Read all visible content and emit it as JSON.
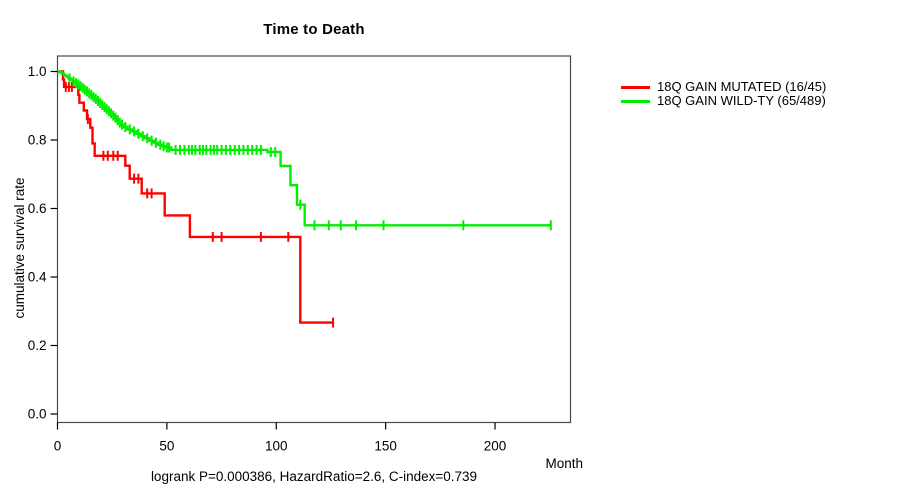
{
  "chart_data": {
    "type": "line",
    "subtype": "kaplan-meier-step",
    "title": "Time to Death",
    "xlabel": "Month",
    "ylabel": "cumulative survival rate",
    "footer": "logrank P=0.000386, HazardRatio=2.6, C-index=0.739",
    "xlim": [
      0,
      234.5
    ],
    "ylim": [
      0,
      1
    ],
    "x_ticks": [
      0,
      50,
      100,
      150,
      200
    ],
    "y_ticks": [
      0,
      0.2,
      0.4,
      0.6,
      0.8,
      1
    ],
    "grid": false,
    "legend_position": "right-outside",
    "series": [
      {
        "label": "18Q GAIN MUTATED (16/45)",
        "events": "16/45",
        "color": "#ff0000",
        "points": [
          [
            0,
            1
          ],
          [
            2.5,
            0.977
          ],
          [
            3,
            0.955
          ],
          [
            9.5,
            0.932
          ],
          [
            10,
            0.909
          ],
          [
            12,
            0.886
          ],
          [
            13.5,
            0.861
          ],
          [
            15,
            0.836
          ],
          [
            16,
            0.79
          ],
          [
            17,
            0.754
          ],
          [
            31,
            0.725
          ],
          [
            33,
            0.687
          ],
          [
            38.5,
            0.644
          ],
          [
            49,
            0.58
          ],
          [
            60.5,
            0.517
          ],
          [
            111,
            0.267
          ]
        ],
        "end_month": 126,
        "censors": [
          [
            3.8,
            0.955
          ],
          [
            5.2,
            0.955
          ],
          [
            6.6,
            0.955
          ],
          [
            13.9,
            0.861
          ],
          [
            21,
            0.754
          ],
          [
            23,
            0.754
          ],
          [
            25.5,
            0.754
          ],
          [
            27.5,
            0.754
          ],
          [
            35,
            0.687
          ],
          [
            37,
            0.687
          ],
          [
            41,
            0.644
          ],
          [
            43,
            0.644
          ],
          [
            71,
            0.517
          ],
          [
            75,
            0.517
          ],
          [
            93,
            0.517
          ],
          [
            105.5,
            0.517
          ],
          [
            126,
            0.267
          ]
        ]
      },
      {
        "label": "18Q GAIN WILD-TY (65/489)",
        "events": "65/489",
        "color": "#00ee00",
        "points": [
          [
            0,
            1
          ],
          [
            1,
            0.998
          ],
          [
            2,
            0.994
          ],
          [
            3,
            0.989
          ],
          [
            4,
            0.985
          ],
          [
            5,
            0.98
          ],
          [
            6,
            0.976
          ],
          [
            7,
            0.971
          ],
          [
            8,
            0.966
          ],
          [
            9,
            0.962
          ],
          [
            10,
            0.957
          ],
          [
            11,
            0.952
          ],
          [
            12,
            0.947
          ],
          [
            13,
            0.942
          ],
          [
            14,
            0.936
          ],
          [
            15,
            0.931
          ],
          [
            16,
            0.925
          ],
          [
            17,
            0.92
          ],
          [
            18,
            0.914
          ],
          [
            19,
            0.908
          ],
          [
            20,
            0.902
          ],
          [
            21,
            0.896
          ],
          [
            22,
            0.89
          ],
          [
            23,
            0.884
          ],
          [
            24,
            0.878
          ],
          [
            25,
            0.871
          ],
          [
            26,
            0.865
          ],
          [
            27,
            0.858
          ],
          [
            28,
            0.851
          ],
          [
            29,
            0.845
          ],
          [
            30,
            0.838
          ],
          [
            32,
            0.831
          ],
          [
            34,
            0.825
          ],
          [
            36,
            0.818
          ],
          [
            38,
            0.811
          ],
          [
            40,
            0.805
          ],
          [
            42,
            0.798
          ],
          [
            44,
            0.792
          ],
          [
            46,
            0.786
          ],
          [
            48,
            0.782
          ],
          [
            49,
            0.778
          ],
          [
            52,
            0.771
          ],
          [
            96,
            0.765
          ],
          [
            102,
            0.724
          ],
          [
            106.5,
            0.668
          ],
          [
            109.5,
            0.611
          ],
          [
            113,
            0.551
          ]
        ],
        "end_month": 225.5,
        "censors": [
          [
            5.5,
            0.98
          ],
          [
            7.3,
            0.971
          ],
          [
            8.5,
            0.966
          ],
          [
            9.5,
            0.962
          ],
          [
            10.5,
            0.957
          ],
          [
            11.5,
            0.952
          ],
          [
            12.5,
            0.947
          ],
          [
            13.5,
            0.942
          ],
          [
            14.5,
            0.936
          ],
          [
            15.5,
            0.931
          ],
          [
            16.5,
            0.925
          ],
          [
            17.5,
            0.92
          ],
          [
            18.5,
            0.914
          ],
          [
            19.5,
            0.908
          ],
          [
            20.5,
            0.902
          ],
          [
            21.5,
            0.896
          ],
          [
            22.5,
            0.89
          ],
          [
            23.5,
            0.884
          ],
          [
            24.5,
            0.878
          ],
          [
            25.5,
            0.871
          ],
          [
            26.5,
            0.865
          ],
          [
            27.5,
            0.858
          ],
          [
            28.5,
            0.851
          ],
          [
            29.5,
            0.845
          ],
          [
            31,
            0.838
          ],
          [
            33,
            0.831
          ],
          [
            35,
            0.825
          ],
          [
            37,
            0.818
          ],
          [
            39,
            0.811
          ],
          [
            41,
            0.805
          ],
          [
            43,
            0.798
          ],
          [
            45,
            0.792
          ],
          [
            47,
            0.786
          ],
          [
            48.5,
            0.782
          ],
          [
            50,
            0.778
          ],
          [
            51,
            0.778
          ],
          [
            54,
            0.771
          ],
          [
            56,
            0.771
          ],
          [
            58,
            0.771
          ],
          [
            60,
            0.771
          ],
          [
            61.5,
            0.771
          ],
          [
            63,
            0.771
          ],
          [
            65,
            0.771
          ],
          [
            66.5,
            0.771
          ],
          [
            68,
            0.771
          ],
          [
            70,
            0.771
          ],
          [
            71.5,
            0.771
          ],
          [
            73,
            0.771
          ],
          [
            75,
            0.771
          ],
          [
            77,
            0.771
          ],
          [
            79,
            0.771
          ],
          [
            81,
            0.771
          ],
          [
            83,
            0.771
          ],
          [
            85,
            0.771
          ],
          [
            87,
            0.771
          ],
          [
            89,
            0.771
          ],
          [
            91,
            0.771
          ],
          [
            93,
            0.771
          ],
          [
            97.5,
            0.765
          ],
          [
            99.5,
            0.765
          ],
          [
            111,
            0.611
          ],
          [
            117.5,
            0.551
          ],
          [
            124,
            0.551
          ],
          [
            129.5,
            0.551
          ],
          [
            136.5,
            0.551
          ],
          [
            149,
            0.551
          ],
          [
            185.5,
            0.551
          ],
          [
            225.5,
            0.551
          ]
        ]
      }
    ]
  }
}
